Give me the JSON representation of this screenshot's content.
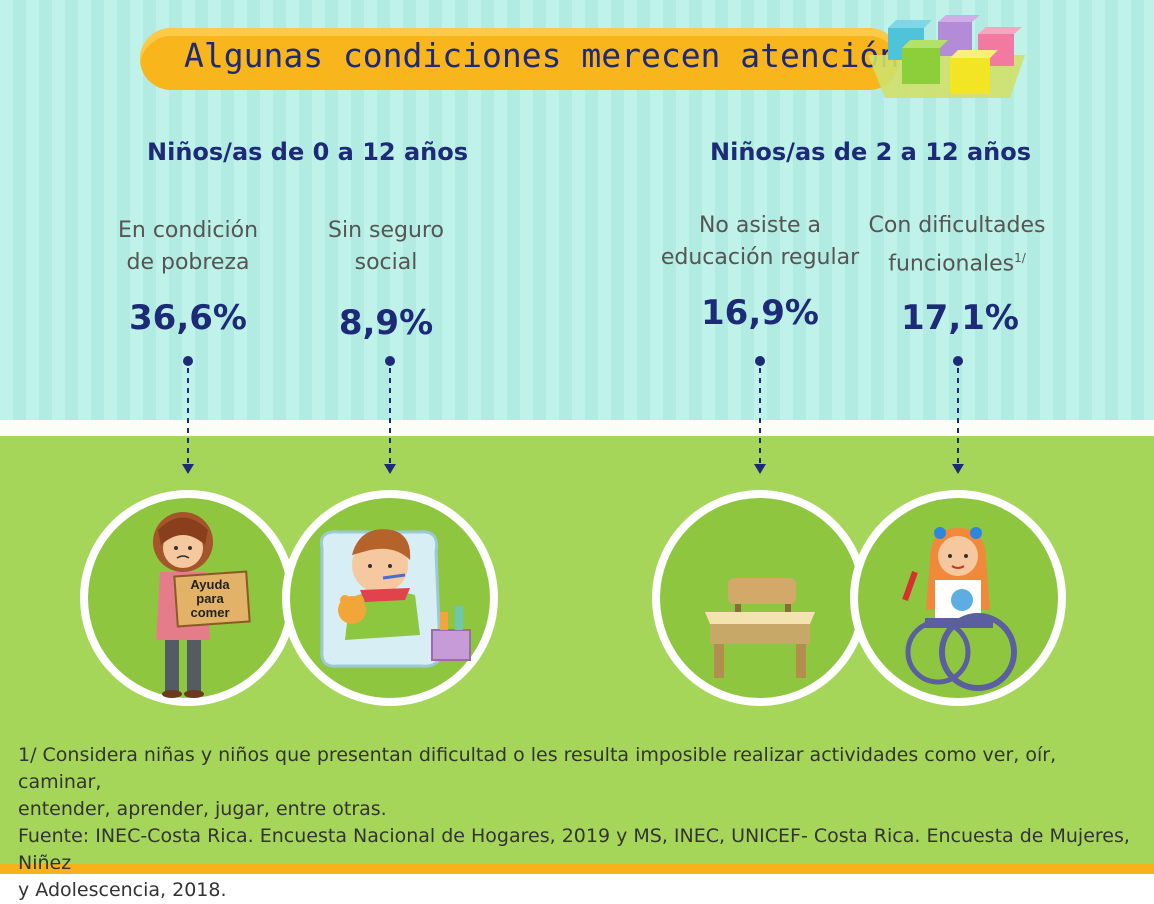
{
  "title": "Algunas condiciones merecen atención",
  "groups": [
    {
      "title": "Niños/as de 0 a 12 años",
      "items": [
        {
          "label_line1": "En condición",
          "label_line2": "de pobreza",
          "value": "36,6%",
          "sign_line1": "Ayuda",
          "sign_line2": "para",
          "sign_line3": "comer"
        },
        {
          "label_line1": "Sin seguro",
          "label_line2": "social",
          "value": "8,9%"
        }
      ]
    },
    {
      "title": "Niños/as de 2 a 12 años",
      "items": [
        {
          "label_line1": "No asiste a",
          "label_line2": "educación regular",
          "value": "16,9%"
        },
        {
          "label_line1": "Con dificultades",
          "label_line2": "funcionales",
          "label_sup": "1/",
          "value": "17,1%"
        }
      ]
    }
  ],
  "footnote_line1": "1/ Considera niñas y niños que presentan dificultad o les resulta imposible realizar actividades como ver, oír, caminar,",
  "footnote_line2": "entender, aprender, jugar, entre otras.",
  "source_line1": "Fuente: INEC-Costa Rica. Encuesta Nacional de Hogares, 2019 y MS, INEC, UNICEF- Costa Rica. Encuesta de Mujeres, Niñez",
  "source_line2": "y Adolescencia, 2018.",
  "colors": {
    "navy": "#1d2a78",
    "banner": "#f9b51c",
    "green": "#a6d659",
    "circle": "#8ec63f",
    "mint": "#bff2e9"
  },
  "icons": [
    "blocks-icon",
    "poor-child-icon",
    "sick-child-icon",
    "school-desk-icon",
    "wheelchair-child-icon"
  ]
}
